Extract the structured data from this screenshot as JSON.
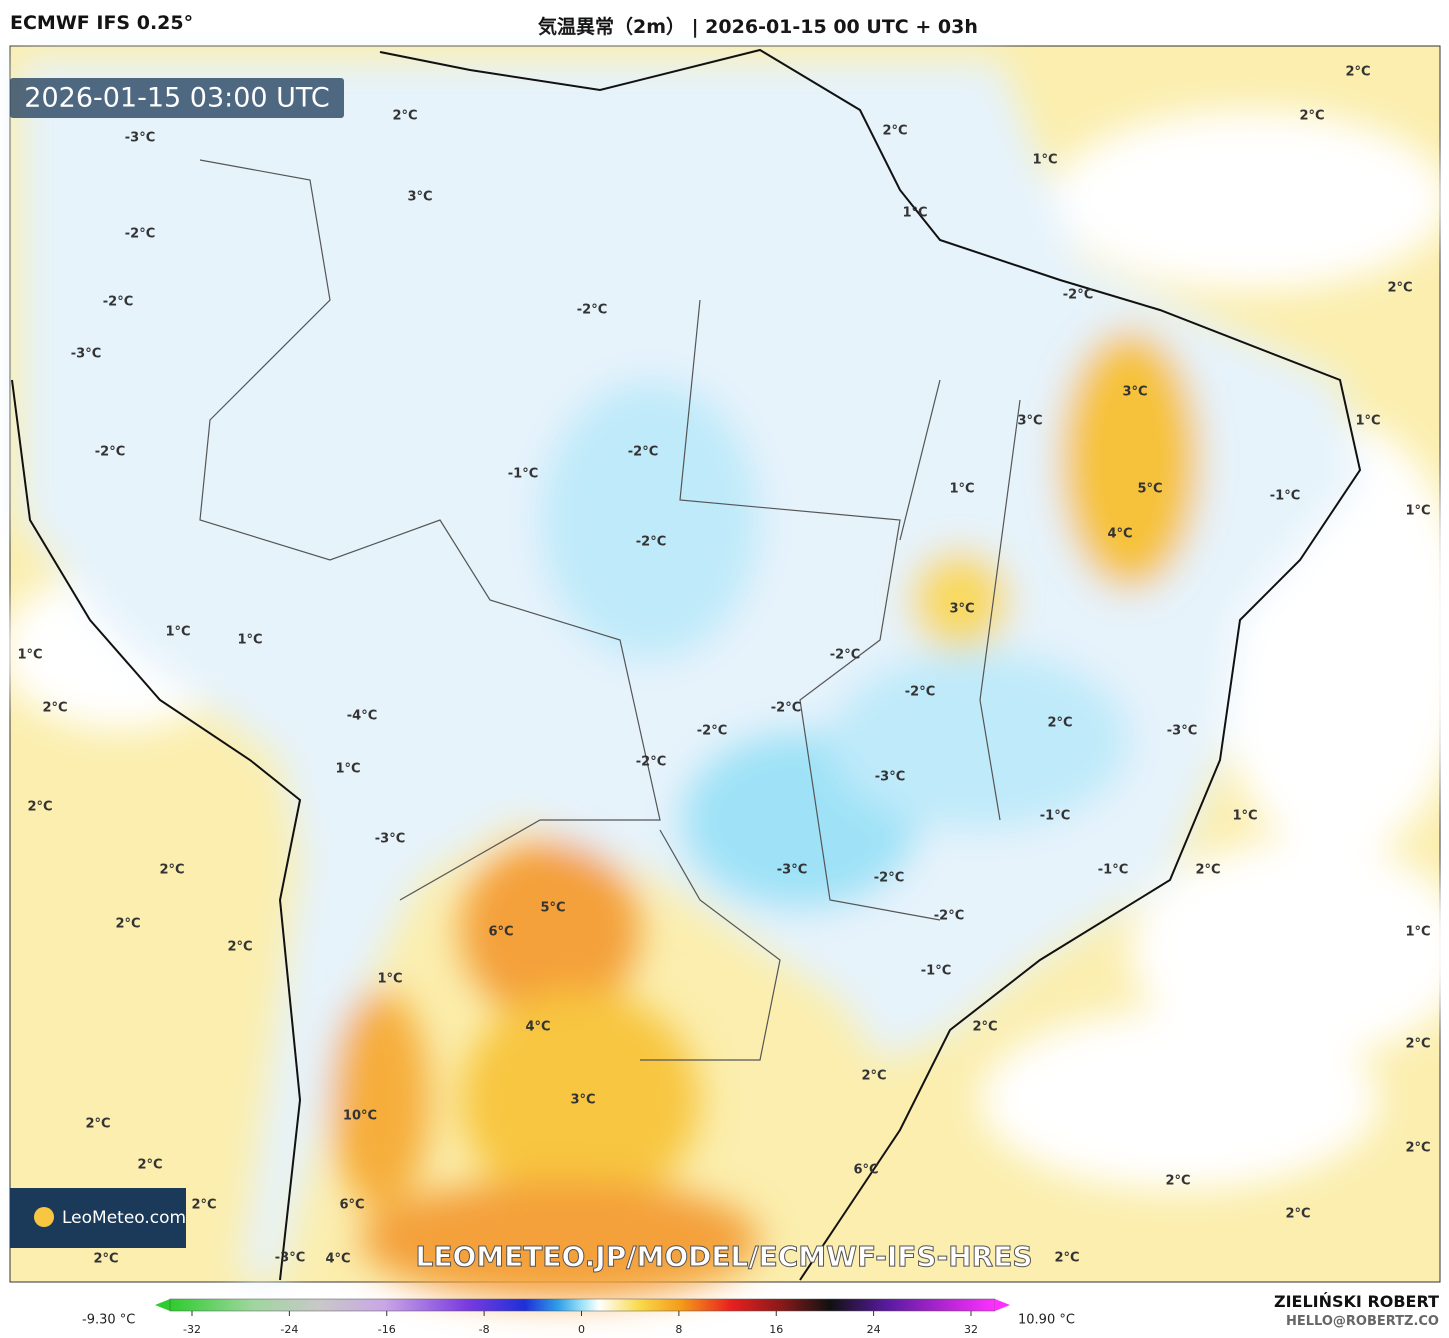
{
  "header": {
    "model": "ECMWF IFS 0.25°",
    "title": "気温異常（2m） | 2026-01-15 00 UTC + 03h"
  },
  "timestamp": "2026-01-15 03:00 UTC",
  "map": {
    "labels": [
      "2°C",
      "2°C",
      "2°C",
      "1°C",
      "2°C",
      "-3°C",
      "3°C",
      "1°C",
      "-2°C",
      "2°C",
      "-2°C",
      "-2°C",
      "-2°C",
      "-3°C",
      "3°C",
      "3°C",
      "1°C",
      "-2°C",
      "-2°C",
      "-1°C",
      "1°C",
      "5°C",
      "-1°C",
      "1°C",
      "4°C",
      "-2°C",
      "3°C",
      "1°C",
      "1°C",
      "1°C",
      "-2°C",
      "-2°C",
      "2°C",
      "-2°C",
      "-2°C",
      "2°C",
      "-3°C",
      "-4°C",
      "-2°C",
      "1°C",
      "-3°C",
      "2°C",
      "1°C",
      "-1°C",
      "-3°C",
      "2°C",
      "-3°C",
      "-1°C",
      "2°C",
      "-2°C",
      "5°C",
      "-2°C",
      "2°C",
      "6°C",
      "1°C",
      "2°C",
      "-1°C",
      "1°C",
      "2°C",
      "4°C",
      "2°C",
      "2°C",
      "3°C",
      "10°C",
      "2°C",
      "2°C",
      "2°C",
      "6°C",
      "2°C",
      "2°C",
      "6°C",
      "2°C",
      "2°C",
      "-3°C",
      "4°C",
      "2°C"
    ]
  },
  "logo": "LeoMeteo.com",
  "watermark": "LEOMETEO.JP/MODEL/ECMWF-IFS-HRES",
  "colorbar": {
    "min_label": "-9.30 °C",
    "max_label": "10.90 °C",
    "ticks": [
      -32,
      -24,
      -16,
      -8,
      0,
      8,
      16,
      24,
      32
    ]
  },
  "footer": {
    "author": "ZIELIŃSKI ROBERT",
    "email": "HELLO@ROBERTZ.CO"
  }
}
